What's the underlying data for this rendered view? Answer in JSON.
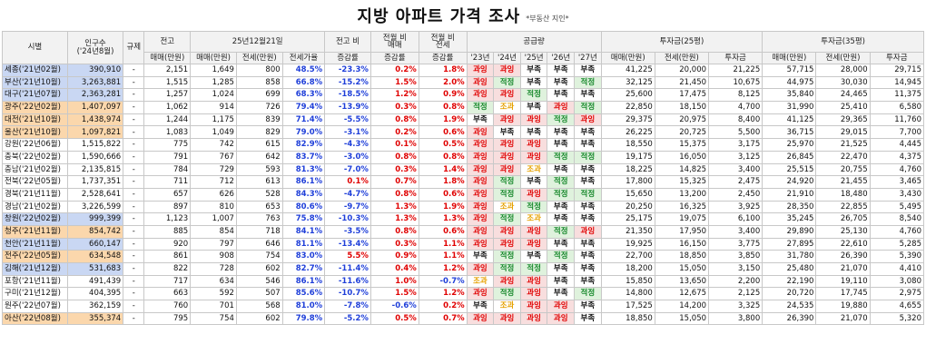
{
  "title": "지방 아파트 가격 조사",
  "subtitle": "*부동산 지인*",
  "headers": {
    "city": "시별",
    "pop": "인구수",
    "pop_sub": "('24년8월)",
    "regulation": "규제",
    "high_price": "전고",
    "date_group": "25년12월21일",
    "vs_high": "전고 비",
    "vs_high_sub": "증감률",
    "mom_sale": "전월 비",
    "mom_sale_sub1": "매매",
    "mom_sale_sub2": "증감률",
    "mom_rent": "전월 비",
    "mom_rent_sub1": "전세",
    "mom_rent_sub2": "증감률",
    "supply": "공급량",
    "inv25": "투자금(25평)",
    "inv35": "투자금(35평)",
    "sale": "매매(만원)",
    "rent": "전세(만원)",
    "jeonse_rate": "전세가율",
    "invest": "투자금",
    "years": [
      "'23년",
      "'24년",
      "'25년",
      "'26년",
      "'27년"
    ]
  },
  "rows": [
    {
      "city": "세종('21년02월)",
      "pop": "390,910",
      "reg": "-",
      "high": "2,151",
      "sale": "1,649",
      "rent": "800",
      "rate": "48.5%",
      "vs": "-23.3%",
      "mom_s": "0.2%",
      "mom_r": "1.8%",
      "sup": [
        "과잉",
        "과잉",
        "부족",
        "부족",
        "부족"
      ],
      "s25": "41,225",
      "r25": "20,000",
      "i25": "21,225",
      "s35": "57,715",
      "r35": "28,000",
      "i35": "29,715",
      "hl": "blue"
    },
    {
      "city": "부산('21년10월)",
      "pop": "3,263,881",
      "reg": "-",
      "high": "1,515",
      "sale": "1,285",
      "rent": "858",
      "rate": "66.8%",
      "vs": "-15.2%",
      "mom_s": "1.5%",
      "mom_r": "2.0%",
      "sup": [
        "과잉",
        "적정",
        "부족",
        "부족",
        "적정"
      ],
      "s25": "32,125",
      "r25": "21,450",
      "i25": "10,675",
      "s35": "44,975",
      "r35": "30,030",
      "i35": "14,945",
      "hl": "blue"
    },
    {
      "city": "대구('21년07월)",
      "pop": "2,363,281",
      "reg": "-",
      "high": "1,257",
      "sale": "1,024",
      "rent": "699",
      "rate": "68.3%",
      "vs": "-18.5%",
      "mom_s": "1.2%",
      "mom_r": "0.9%",
      "sup": [
        "과잉",
        "과잉",
        "적정",
        "부족",
        "부족"
      ],
      "s25": "25,600",
      "r25": "17,475",
      "i25": "8,125",
      "s35": "35,840",
      "r35": "24,465",
      "i35": "11,375",
      "hl": "blue"
    },
    {
      "city": "광주('22년02월)",
      "pop": "1,407,097",
      "reg": "-",
      "high": "1,062",
      "sale": "914",
      "rent": "726",
      "rate": "79.4%",
      "vs": "-13.9%",
      "mom_s": "0.3%",
      "mom_r": "0.8%",
      "sup": [
        "적정",
        "조과",
        "부족",
        "과잉",
        "적정"
      ],
      "s25": "22,850",
      "r25": "18,150",
      "i25": "4,700",
      "s35": "31,990",
      "r35": "25,410",
      "i35": "6,580",
      "hl": "orange"
    },
    {
      "city": "대전('21년10월)",
      "pop": "1,438,974",
      "reg": "-",
      "high": "1,244",
      "sale": "1,175",
      "rent": "839",
      "rate": "71.4%",
      "vs": "-5.5%",
      "mom_s": "0.8%",
      "mom_r": "1.9%",
      "sup": [
        "부족",
        "과잉",
        "과잉",
        "적정",
        "과잉"
      ],
      "s25": "29,375",
      "r25": "20,975",
      "i25": "8,400",
      "s35": "41,125",
      "r35": "29,365",
      "i35": "11,760",
      "hl": "orange"
    },
    {
      "city": "울산('21년10월)",
      "pop": "1,097,821",
      "reg": "-",
      "high": "1,083",
      "sale": "1,049",
      "rent": "829",
      "rate": "79.0%",
      "vs": "-3.1%",
      "mom_s": "0.2%",
      "mom_r": "0.6%",
      "sup": [
        "과잉",
        "부족",
        "부족",
        "부족",
        "부족"
      ],
      "s25": "26,225",
      "r25": "20,725",
      "i25": "5,500",
      "s35": "36,715",
      "r35": "29,015",
      "i35": "7,700",
      "hl": "orange"
    },
    {
      "city": "강원('22년06월)",
      "pop": "1,515,822",
      "reg": "-",
      "high": "775",
      "sale": "742",
      "rent": "615",
      "rate": "82.9%",
      "vs": "-4.3%",
      "mom_s": "0.1%",
      "mom_r": "0.5%",
      "sup": [
        "과잉",
        "과잉",
        "과잉",
        "부족",
        "부족"
      ],
      "s25": "18,550",
      "r25": "15,375",
      "i25": "3,175",
      "s35": "25,970",
      "r35": "21,525",
      "i35": "4,445",
      "hl": ""
    },
    {
      "city": "충북('22년02월)",
      "pop": "1,590,666",
      "reg": "-",
      "high": "791",
      "sale": "767",
      "rent": "642",
      "rate": "83.7%",
      "vs": "-3.0%",
      "mom_s": "0.8%",
      "mom_r": "0.8%",
      "sup": [
        "과잉",
        "과잉",
        "과잉",
        "적정",
        "적정"
      ],
      "s25": "19,175",
      "r25": "16,050",
      "i25": "3,125",
      "s35": "26,845",
      "r35": "22,470",
      "i35": "4,375",
      "hl": ""
    },
    {
      "city": "충남('21년02월)",
      "pop": "2,135,815",
      "reg": "-",
      "high": "784",
      "sale": "729",
      "rent": "593",
      "rate": "81.3%",
      "vs": "-7.0%",
      "mom_s": "0.3%",
      "mom_r": "1.4%",
      "sup": [
        "과잉",
        "과잉",
        "조과",
        "부족",
        "부족"
      ],
      "s25": "18,225",
      "r25": "14,825",
      "i25": "3,400",
      "s35": "25,515",
      "r35": "20,755",
      "i35": "4,760",
      "hl": ""
    },
    {
      "city": "전북('22년05월)",
      "pop": "1,737,351",
      "reg": "-",
      "high": "711",
      "sale": "712",
      "rent": "613",
      "rate": "86.1%",
      "vs": "0.1%",
      "mom_s": "0.7%",
      "mom_r": "1.8%",
      "sup": [
        "과잉",
        "적정",
        "부족",
        "적정",
        "부족"
      ],
      "s25": "17,800",
      "r25": "15,325",
      "i25": "2,475",
      "s35": "24,920",
      "r35": "21,455",
      "i35": "3,465",
      "hl": ""
    },
    {
      "city": "경북('21년11월)",
      "pop": "2,528,641",
      "reg": "-",
      "high": "657",
      "sale": "626",
      "rent": "528",
      "rate": "84.3%",
      "vs": "-4.7%",
      "mom_s": "0.8%",
      "mom_r": "0.6%",
      "sup": [
        "과잉",
        "적정",
        "과잉",
        "적정",
        "적정"
      ],
      "s25": "15,650",
      "r25": "13,200",
      "i25": "2,450",
      "s35": "21,910",
      "r35": "18,480",
      "i35": "3,430",
      "hl": ""
    },
    {
      "city": "경남('21년02월)",
      "pop": "3,226,599",
      "reg": "-",
      "high": "897",
      "sale": "810",
      "rent": "653",
      "rate": "80.6%",
      "vs": "-9.7%",
      "mom_s": "1.3%",
      "mom_r": "1.9%",
      "sup": [
        "과잉",
        "조과",
        "적정",
        "부족",
        "부족"
      ],
      "s25": "20,250",
      "r25": "16,325",
      "i25": "3,925",
      "s35": "28,350",
      "r35": "22,855",
      "i35": "5,495",
      "hl": ""
    },
    {
      "city": "창원('22년02월)",
      "pop": "999,399",
      "reg": "-",
      "high": "1,123",
      "sale": "1,007",
      "rent": "763",
      "rate": "75.8%",
      "vs": "-10.3%",
      "mom_s": "1.3%",
      "mom_r": "1.3%",
      "sup": [
        "과잉",
        "적정",
        "조과",
        "부족",
        "부족"
      ],
      "s25": "25,175",
      "r25": "19,075",
      "i25": "6,100",
      "s35": "35,245",
      "r35": "26,705",
      "i35": "8,540",
      "hl": "blue"
    },
    {
      "city": "청주('21년11월)",
      "pop": "854,742",
      "reg": "-",
      "high": "885",
      "sale": "854",
      "rent": "718",
      "rate": "84.1%",
      "vs": "-3.5%",
      "mom_s": "0.8%",
      "mom_r": "0.6%",
      "sup": [
        "과잉",
        "과잉",
        "과잉",
        "적정",
        "과잉"
      ],
      "s25": "21,350",
      "r25": "17,950",
      "i25": "3,400",
      "s35": "29,890",
      "r35": "25,130",
      "i35": "4,760",
      "hl": "orange"
    },
    {
      "city": "천안('21년11월)",
      "pop": "660,147",
      "reg": "-",
      "high": "920",
      "sale": "797",
      "rent": "646",
      "rate": "81.1%",
      "vs": "-13.4%",
      "mom_s": "0.3%",
      "mom_r": "1.1%",
      "sup": [
        "과잉",
        "과잉",
        "과잉",
        "부족",
        "부족"
      ],
      "s25": "19,925",
      "r25": "16,150",
      "i25": "3,775",
      "s35": "27,895",
      "r35": "22,610",
      "i35": "5,285",
      "hl": "blue"
    },
    {
      "city": "전주('22년05월)",
      "pop": "634,548",
      "reg": "-",
      "high": "861",
      "sale": "908",
      "rent": "754",
      "rate": "83.0%",
      "vs": "5.5%",
      "mom_s": "0.9%",
      "mom_r": "1.1%",
      "sup": [
        "부족",
        "적정",
        "부족",
        "적정",
        "부족"
      ],
      "s25": "22,700",
      "r25": "18,850",
      "i25": "3,850",
      "s35": "31,780",
      "r35": "26,390",
      "i35": "5,390",
      "hl": "orange"
    },
    {
      "city": "김해('21년12월)",
      "pop": "531,683",
      "reg": "-",
      "high": "822",
      "sale": "728",
      "rent": "602",
      "rate": "82.7%",
      "vs": "-11.4%",
      "mom_s": "0.4%",
      "mom_r": "1.2%",
      "sup": [
        "과잉",
        "적정",
        "적정",
        "부족",
        "부족"
      ],
      "s25": "18,200",
      "r25": "15,050",
      "i25": "3,150",
      "s35": "25,480",
      "r35": "21,070",
      "i35": "4,410",
      "hl": "blue"
    },
    {
      "city": "포항('21년11월)",
      "pop": "491,439",
      "reg": "-",
      "high": "717",
      "sale": "634",
      "rent": "546",
      "rate": "86.1%",
      "vs": "-11.6%",
      "mom_s": "1.0%",
      "mom_r": "-0.7%",
      "sup": [
        "조과",
        "과잉",
        "과잉",
        "부족",
        "부족"
      ],
      "s25": "15,850",
      "r25": "13,650",
      "i25": "2,200",
      "s35": "22,190",
      "r35": "19,110",
      "i35": "3,080",
      "hl": ""
    },
    {
      "city": "구미('21년12월)",
      "pop": "404,395",
      "reg": "-",
      "high": "663",
      "sale": "592",
      "rent": "507",
      "rate": "85.6%",
      "vs": "-10.7%",
      "mom_s": "1.5%",
      "mom_r": "1.2%",
      "sup": [
        "과잉",
        "적정",
        "과잉",
        "부족",
        "적정"
      ],
      "s25": "14,800",
      "r25": "12,675",
      "i25": "2,125",
      "s35": "20,720",
      "r35": "17,745",
      "i35": "2,975",
      "hl": ""
    },
    {
      "city": "원주('22년07월)",
      "pop": "362,159",
      "reg": "-",
      "high": "760",
      "sale": "701",
      "rent": "568",
      "rate": "81.0%",
      "vs": "-7.8%",
      "mom_s": "-0.6%",
      "mom_r": "0.2%",
      "sup": [
        "부족",
        "조과",
        "과잉",
        "과잉",
        "부족"
      ],
      "s25": "17,525",
      "r25": "14,200",
      "i25": "3,325",
      "s35": "24,535",
      "r35": "19,880",
      "i35": "4,655",
      "hl": ""
    },
    {
      "city": "아산('22년08월)",
      "pop": "355,374",
      "reg": "-",
      "high": "795",
      "sale": "754",
      "rent": "602",
      "rate": "79.8%",
      "vs": "-5.2%",
      "mom_s": "0.5%",
      "mom_r": "0.7%",
      "sup": [
        "과잉",
        "과잉",
        "과잉",
        "과잉",
        "부족"
      ],
      "s25": "18,850",
      "r25": "15,050",
      "i25": "3,800",
      "s35": "26,390",
      "r35": "21,070",
      "i35": "5,320",
      "hl": "orange"
    }
  ]
}
